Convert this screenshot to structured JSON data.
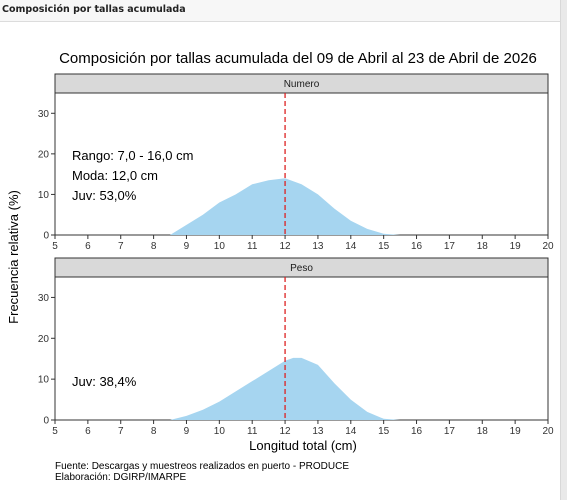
{
  "panel": {
    "title": "Composición por tallas acumulada"
  },
  "chart_data": {
    "type": "area",
    "title": "Composición por tallas acumulada del 09 de Abril al 23 de Abril de 2026",
    "xlabel": "Longitud total (cm)",
    "ylabel": "Frecuencia relativa (%)",
    "xlim": [
      5,
      20
    ],
    "ylim": [
      0,
      35
    ],
    "xticks": [
      "5",
      "6",
      "7",
      "8",
      "9",
      "10",
      "11",
      "12",
      "13",
      "14",
      "15",
      "16",
      "17",
      "18",
      "19",
      "20"
    ],
    "yticks": [
      "0",
      "10",
      "20",
      "30"
    ],
    "reference_line": {
      "x": 12,
      "style": "dashed",
      "color": "#dd2222"
    },
    "fill_color": "#a6d5f0",
    "panels": [
      {
        "name": "Numero",
        "annotations": [
          "Rango: 7,0 - 16,0 cm",
          "Moda: 12,0 cm",
          "Juv: 53,0%"
        ],
        "x": [
          8.5,
          9,
          9.5,
          10,
          10.5,
          11,
          11.5,
          12,
          12.5,
          13,
          13.5,
          14,
          14.5,
          15,
          15.5
        ],
        "y": [
          0,
          2.5,
          5,
          8,
          10,
          12.5,
          13.5,
          14,
          12.5,
          10,
          6.5,
          3.5,
          1.5,
          0.3,
          0
        ]
      },
      {
        "name": "Peso",
        "annotations": [
          "Juv: 38,4%"
        ],
        "x": [
          8.5,
          9,
          9.5,
          10,
          10.5,
          11,
          11.5,
          12,
          12.25,
          12.5,
          13,
          13.5,
          14,
          14.5,
          15,
          15.5
        ],
        "y": [
          0,
          1,
          2.5,
          4.5,
          7,
          9.5,
          12,
          14.5,
          15.2,
          15.2,
          13.5,
          9,
          5,
          2,
          0.3,
          0
        ]
      }
    ],
    "notes": [
      "Fuente: Descargas y muestreos realizados en puerto - PRODUCE",
      "Elaboración: DGIRP/IMARPE"
    ]
  }
}
